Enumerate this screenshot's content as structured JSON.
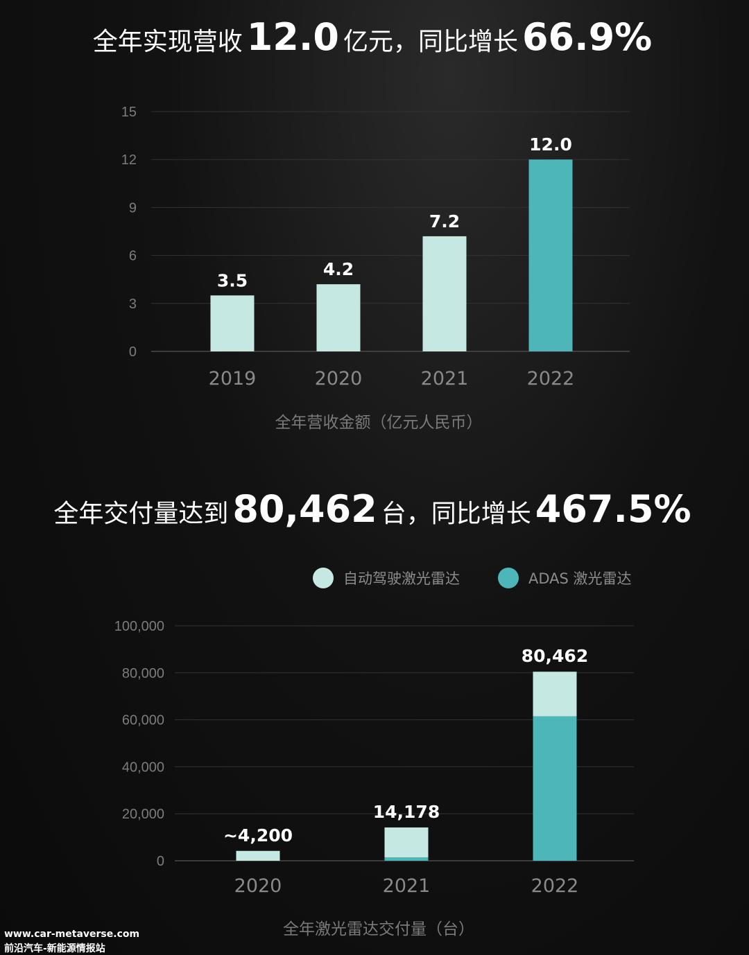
{
  "headline1": {
    "pre": "全年实现营收",
    "num1": "12.0",
    "mid": "亿元，同比增长",
    "num2": "66.9%"
  },
  "headline2": {
    "pre": "全年交付量达到",
    "num1": "80,462",
    "mid": "台，同比增长",
    "num2": "467.5%"
  },
  "chart_data": [
    {
      "type": "bar",
      "title": "",
      "xlabel": "全年营收金额（亿元人民币）",
      "ylabel": "",
      "categories": [
        "2019",
        "2020",
        "2021",
        "2022"
      ],
      "values": [
        3.5,
        4.2,
        7.2,
        12.0
      ],
      "data_labels": [
        "3.5",
        "4.2",
        "7.2",
        "12.0"
      ],
      "yticks": [
        0,
        3,
        6,
        9,
        12,
        15
      ],
      "ylim": [
        0,
        15
      ],
      "grid": true,
      "colors": [
        "#c6e8e3",
        "#c6e8e3",
        "#c6e8e3",
        "#4db6b8"
      ]
    },
    {
      "type": "bar",
      "stacked": true,
      "title": "",
      "xlabel": "全年激光雷达交付量（台）",
      "ylabel": "",
      "categories": [
        "2020",
        "2021",
        "2022"
      ],
      "series": [
        {
          "name": "ADAS 激光雷达",
          "color": "#4db6b8",
          "values": [
            0,
            1400,
            61500
          ]
        },
        {
          "name": "自动驾驶激光雷达",
          "color": "#c6e8e3",
          "values": [
            4200,
            12778,
            18962
          ]
        }
      ],
      "totals": [
        4200,
        14178,
        80462
      ],
      "data_labels": [
        "~4,200",
        "14,178",
        "80,462"
      ],
      "yticks": [
        0,
        20000,
        40000,
        60000,
        80000,
        100000
      ],
      "ytick_labels": [
        "0",
        "20,000",
        "40,000",
        "60,000",
        "80,000",
        "100,000"
      ],
      "ylim": [
        0,
        100000
      ],
      "grid": true,
      "legend": {
        "position": "top-right",
        "entries": [
          {
            "label": "自动驾驶激光雷达",
            "color": "#c6e8e3"
          },
          {
            "label": "ADAS 激光雷达",
            "color": "#4db6b8"
          }
        ]
      }
    }
  ],
  "watermark": {
    "line1": "www.car-metaverse.com",
    "line2": "前沿汽车-新能源情报站"
  }
}
